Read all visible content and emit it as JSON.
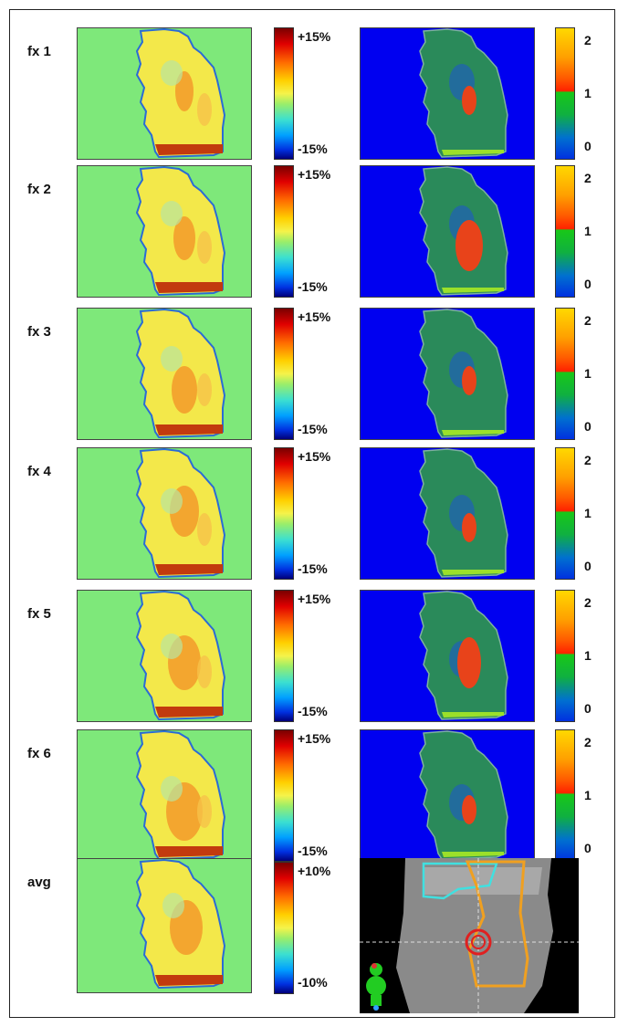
{
  "rows": [
    {
      "label": "fx 1",
      "left_max": "+15%",
      "left_min": "-15%",
      "right_top": "2",
      "right_mid": "1",
      "right_bot": "0"
    },
    {
      "label": "fx 2",
      "left_max": "+15%",
      "left_min": "-15%",
      "right_top": "2",
      "right_mid": "1",
      "right_bot": "0"
    },
    {
      "label": "fx 3",
      "left_max": "+15%",
      "left_min": "-15%",
      "right_top": "2",
      "right_mid": "1",
      "right_bot": "0"
    },
    {
      "label": "fx 4",
      "left_max": "+15%",
      "left_min": "-15%",
      "right_top": "2",
      "right_mid": "1",
      "right_bot": "0"
    },
    {
      "label": "fx 5",
      "left_max": "+15%",
      "left_min": "-15%",
      "right_top": "2",
      "right_mid": "1",
      "right_bot": "0"
    },
    {
      "label": "fx 6",
      "left_max": "+15%",
      "left_min": "-15%",
      "right_top": "2",
      "right_mid": "1",
      "right_bot": "0"
    }
  ],
  "avg": {
    "label": "avg",
    "left_max": "+10%",
    "left_min": "-10%"
  },
  "colors": {
    "diff_background": "#7ee87a",
    "gamma_background": "#0000f0",
    "ct_background": "#000000",
    "contour_cyan": "#40e0e0",
    "contour_orange": "#f0a020",
    "target_red": "#e02020"
  }
}
